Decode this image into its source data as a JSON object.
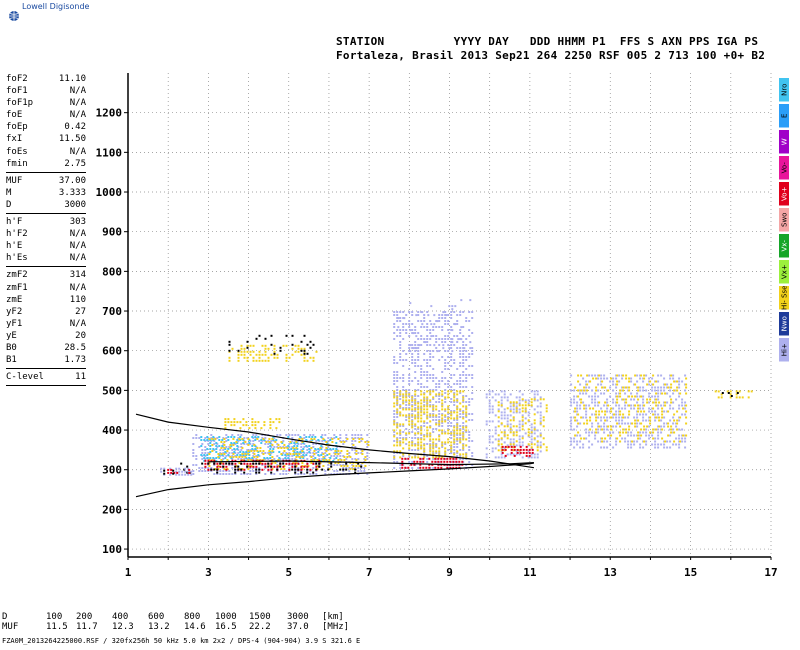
{
  "brand": {
    "name": "Lowell Digisonde"
  },
  "header": {
    "line1": "STATION          YYYY DAY   DDD HHMM P1  FFS S AXN PPS IGA PS",
    "line2": "Fortaleza, Brasil 2013 Sep21 264 2250 RSF 005 2 713 100 +0+ B2"
  },
  "params": {
    "group1": [
      {
        "name": "foF2",
        "value": "11.10"
      },
      {
        "name": "foF1",
        "value": "N/A"
      },
      {
        "name": "foF1p",
        "value": "N/A"
      },
      {
        "name": "foE",
        "value": "N/A"
      },
      {
        "name": "foEp",
        "value": "0.42"
      },
      {
        "name": "fxI",
        "value": "11.50"
      },
      {
        "name": "foEs",
        "value": "N/A"
      },
      {
        "name": "fmin",
        "value": "2.75"
      }
    ],
    "group2": [
      {
        "name": "MUF",
        "value": "37.00"
      },
      {
        "name": "M",
        "value": "3.333"
      },
      {
        "name": "D",
        "value": "3000"
      }
    ],
    "group3": [
      {
        "name": "h'F",
        "value": "303"
      },
      {
        "name": "h'F2",
        "value": "N/A"
      },
      {
        "name": "h'E",
        "value": "N/A"
      },
      {
        "name": "h'Es",
        "value": "N/A"
      }
    ],
    "group4": [
      {
        "name": "zmF2",
        "value": "314"
      },
      {
        "name": "zmF1",
        "value": "N/A"
      },
      {
        "name": "zmE",
        "value": "110"
      },
      {
        "name": "yF2",
        "value": "27"
      },
      {
        "name": "yF1",
        "value": "N/A"
      },
      {
        "name": "yE",
        "value": "20"
      },
      {
        "name": "B0",
        "value": "28.5"
      },
      {
        "name": "B1",
        "value": "1.73"
      }
    ],
    "group5": [
      {
        "name": "C-level",
        "value": "11"
      }
    ]
  },
  "legend": [
    {
      "label": "Nro",
      "color": "#41c4f0"
    },
    {
      "label": "E",
      "color": "#2a9ef8"
    },
    {
      "label": "W",
      "color": "#a000c8"
    },
    {
      "label": "Vo-",
      "color": "#e8149b"
    },
    {
      "label": "Vo+",
      "color": "#e0001c"
    },
    {
      "label": "Swo",
      "color": "#f5a6a6"
    },
    {
      "label": "Vx-",
      "color": "#16a528"
    },
    {
      "label": "Vx+",
      "color": "#9cf03c"
    },
    {
      "label": "Hi- Sse",
      "color": "#f2d21c"
    },
    {
      "label": "Nwo",
      "color": "#1e3b9a"
    },
    {
      "label": "Hi+",
      "color": "#aeb0ee"
    }
  ],
  "footer": {
    "d_label": "D",
    "d_values": [
      "100",
      "200",
      "400",
      "600",
      "800",
      "1000",
      "1500",
      "3000"
    ],
    "d_unit": "[km]",
    "muf_label": "MUF",
    "muf_values": [
      "11.5",
      "11.7",
      "12.3",
      "13.2",
      "14.6",
      "16.5",
      "22.2",
      "37.0"
    ],
    "muf_unit": "[MHz]",
    "file_info": "FZA0M_2013264225000.RSF / 320fx256h 50 kHz 5.0 km 2x2 / DPS-4 (904-904)  3.9 S 321.6 E"
  },
  "chart_data": {
    "type": "scatter",
    "xlim": [
      1,
      17
    ],
    "ylim": [
      80,
      1300
    ],
    "x_ticks": [
      1,
      3,
      5,
      7,
      9,
      11,
      13,
      15,
      17
    ],
    "y_ticks": [
      100,
      200,
      300,
      400,
      500,
      600,
      700,
      800,
      900,
      1000,
      1100,
      1200
    ],
    "grid": true,
    "profile_curves": [
      {
        "name": "upper",
        "points": [
          [
            1.2,
            440
          ],
          [
            2,
            420
          ],
          [
            3,
            407
          ],
          [
            4,
            395
          ],
          [
            5,
            378
          ],
          [
            6,
            362
          ],
          [
            7,
            350
          ],
          [
            8,
            341
          ],
          [
            9,
            333
          ],
          [
            10,
            322
          ],
          [
            10.8,
            310
          ],
          [
            11.1,
            305
          ]
        ]
      },
      {
        "name": "lower",
        "points": [
          [
            1.2,
            232
          ],
          [
            2,
            250
          ],
          [
            3,
            262
          ],
          [
            4,
            270
          ],
          [
            5,
            280
          ],
          [
            6,
            287
          ],
          [
            7,
            292
          ],
          [
            8,
            297
          ],
          [
            9,
            302
          ],
          [
            10,
            308
          ],
          [
            11,
            315
          ],
          [
            11.1,
            317
          ]
        ]
      },
      {
        "name": "mid",
        "points": [
          [
            3,
            320
          ],
          [
            5,
            322
          ],
          [
            7,
            318
          ],
          [
            9,
            313
          ],
          [
            10.5,
            315
          ],
          [
            11.1,
            318
          ]
        ]
      }
    ],
    "echo_regions": [
      {
        "color": "#aeb0ee",
        "x": [
          2.6,
          7.0
        ],
        "y": [
          290,
          390
        ],
        "density": 0.55
      },
      {
        "color": "#41c4f0",
        "x": [
          2.8,
          6.2
        ],
        "y": [
          320,
          385
        ],
        "density": 0.45
      },
      {
        "color": "#f2d21c",
        "x": [
          3.0,
          7.0
        ],
        "y": [
          300,
          380
        ],
        "density": 0.35
      },
      {
        "color": "#e0001c",
        "x": [
          2.9,
          5.8
        ],
        "y": [
          300,
          325
        ],
        "density": 0.55
      },
      {
        "color": "#000000",
        "x": [
          2.3,
          6.9
        ],
        "y": [
          295,
          318
        ],
        "density": 0.25
      },
      {
        "color": "#aeb0ee",
        "x": [
          7.6,
          9.6
        ],
        "y": [
          300,
          700
        ],
        "density": 0.5
      },
      {
        "color": "#f2d21c",
        "x": [
          7.6,
          9.4
        ],
        "y": [
          330,
          500
        ],
        "density": 0.5
      },
      {
        "color": "#e0001c",
        "x": [
          7.8,
          9.3
        ],
        "y": [
          305,
          330
        ],
        "density": 0.6
      },
      {
        "color": "#aeb0ee",
        "x": [
          9.9,
          11.3
        ],
        "y": [
          330,
          500
        ],
        "density": 0.45
      },
      {
        "color": "#f2d21c",
        "x": [
          10.2,
          11.4
        ],
        "y": [
          350,
          480
        ],
        "density": 0.35
      },
      {
        "color": "#e0001c",
        "x": [
          10.3,
          11.1
        ],
        "y": [
          330,
          360
        ],
        "density": 0.6
      },
      {
        "color": "#aeb0ee",
        "x": [
          12.0,
          14.9
        ],
        "y": [
          355,
          540
        ],
        "density": 0.45
      },
      {
        "color": "#f2d21c",
        "x": [
          12.1,
          14.9
        ],
        "y": [
          370,
          540
        ],
        "density": 0.25
      },
      {
        "color": "#f2d21c",
        "x": [
          3.4,
          4.8
        ],
        "y": [
          400,
          430
        ],
        "density": 0.45
      },
      {
        "color": "#f2d21c",
        "x": [
          3.5,
          5.7
        ],
        "y": [
          575,
          615
        ],
        "density": 0.4
      },
      {
        "color": "#000000",
        "x": [
          3.5,
          5.6
        ],
        "y": [
          590,
          640
        ],
        "density": 0.2
      },
      {
        "color": "#aeb0ee",
        "x": [
          7.7,
          9.5
        ],
        "y": [
          600,
          730
        ],
        "density": 0.12
      },
      {
        "color": "#f2d21c",
        "x": [
          15.6,
          16.6
        ],
        "y": [
          480,
          500
        ],
        "density": 0.45
      },
      {
        "color": "#000000",
        "x": [
          15.7,
          16.5
        ],
        "y": [
          482,
          496
        ],
        "density": 0.25
      },
      {
        "color": "#aeb0ee",
        "x": [
          1.8,
          2.6
        ],
        "y": [
          288,
          305
        ],
        "density": 0.5
      },
      {
        "color": "#e0001c",
        "x": [
          1.9,
          2.6
        ],
        "y": [
          288,
          302
        ],
        "density": 0.5
      },
      {
        "color": "#000000",
        "x": [
          1.8,
          2.3
        ],
        "y": [
          290,
          300
        ],
        "density": 0.5
      }
    ]
  }
}
